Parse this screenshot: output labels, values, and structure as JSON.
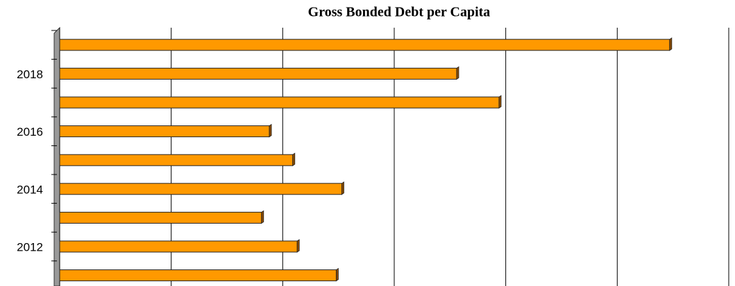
{
  "chart_data": {
    "type": "hbar",
    "title": "Gross Bonded Debt per Capita",
    "categories": [
      null,
      "2018",
      null,
      "2016",
      null,
      "2014",
      null,
      "2012",
      null
    ],
    "values": [
      5.47,
      3.56,
      3.94,
      1.88,
      2.09,
      2.53,
      1.81,
      2.13,
      2.48
    ],
    "color": "#ff9900",
    "xlim": [
      0,
      6
    ],
    "xticks": [
      0,
      1,
      2,
      3,
      4,
      5,
      6
    ],
    "grid": true
  }
}
